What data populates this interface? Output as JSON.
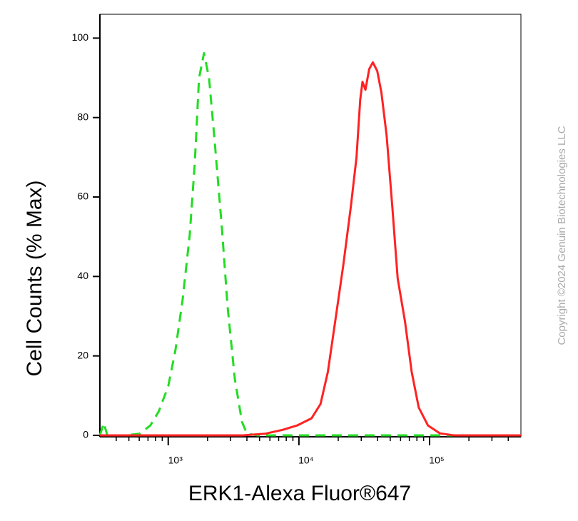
{
  "chart_data": {
    "type": "line",
    "x_label": "ERK1-Alexa Fluor®647",
    "y_label": "Cell Counts (% Max)",
    "watermark": "Copyright ©2024 Genuin Biotechnologies LLC",
    "x_scale": "log",
    "xlim": [
      300,
      500000
    ],
    "xticks": [
      {
        "value": 1000,
        "label": "10³"
      },
      {
        "value": 10000,
        "label": "10⁴"
      },
      {
        "value": 100000,
        "label": "10⁵"
      }
    ],
    "xminorticks": [
      400,
      500,
      600,
      700,
      800,
      900,
      2000,
      3000,
      4000,
      5000,
      6000,
      7000,
      8000,
      9000,
      20000,
      30000,
      40000,
      50000,
      60000,
      70000,
      80000,
      90000,
      200000,
      300000,
      400000
    ],
    "ylim": [
      0,
      106
    ],
    "yticks": [
      0,
      20,
      40,
      60,
      80,
      100
    ],
    "series": [
      {
        "color": "#22dd22",
        "dash": true,
        "x": [
          300,
          321,
          342,
          469,
          604,
          730,
          849,
          1000,
          1134,
          1287,
          1460,
          1595,
          1720,
          1878,
          2053,
          2272,
          2577,
          2850,
          3234,
          3666,
          4004,
          4838,
          500000
        ],
        "values": [
          0,
          3.1,
          0,
          0,
          0.4,
          2.5,
          6.1,
          12.4,
          21.4,
          34,
          50.3,
          68.3,
          89.9,
          96.2,
          89.9,
          73.7,
          52.1,
          32.3,
          14.2,
          3.4,
          0.4,
          0,
          0
        ]
      },
      {
        "color": "#ff2222",
        "dash": false,
        "x": [
          300,
          3730,
          5490,
          7540,
          9700,
          12500,
          14650,
          16670,
          19300,
          21900,
          24950,
          27580,
          29450,
          30650,
          32300,
          34500,
          36800,
          39800,
          42800,
          46900,
          51900,
          57000,
          64900,
          72900,
          82600,
          97200,
          120000,
          154000,
          500000
        ],
        "values": [
          0,
          0,
          0.4,
          1.4,
          2.5,
          4.3,
          7.9,
          16,
          30.5,
          43,
          57.5,
          70,
          84.5,
          89,
          87,
          92.2,
          93.9,
          91.7,
          86.3,
          75.5,
          57.5,
          39.5,
          28.6,
          16,
          7,
          2.5,
          0.5,
          0,
          0
        ]
      }
    ]
  }
}
